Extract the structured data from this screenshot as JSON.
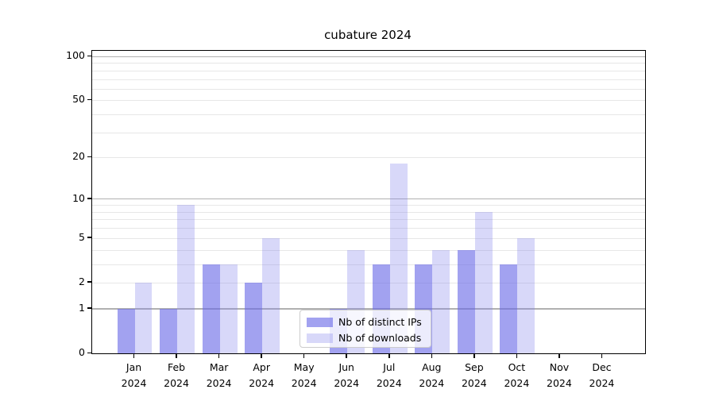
{
  "chart_data": {
    "type": "bar",
    "title": "cubature 2024",
    "year": "2024",
    "months": [
      "Jan",
      "Feb",
      "Mar",
      "Apr",
      "May",
      "Jun",
      "Jul",
      "Aug",
      "Sep",
      "Oct",
      "Nov",
      "Dec"
    ],
    "categories": [
      "Jan 2024",
      "Feb 2024",
      "Mar 2024",
      "Apr 2024",
      "May 2024",
      "Jun 2024",
      "Jul 2024",
      "Aug 2024",
      "Sep 2024",
      "Oct 2024",
      "Nov 2024",
      "Dec 2024"
    ],
    "series": [
      {
        "name": "Nb of distinct IPs",
        "values": [
          1,
          1,
          3,
          2,
          0,
          1,
          3,
          3,
          4,
          3,
          0,
          0
        ],
        "color": "rgba(105,105,230,0.62)"
      },
      {
        "name": "Nb of downloads",
        "values": [
          2,
          9,
          3,
          5,
          0,
          4,
          18,
          4,
          8,
          5,
          0,
          0
        ],
        "color": "rgba(125,125,235,0.30)"
      }
    ],
    "yscale": "log1p",
    "ylim": [
      0,
      109
    ],
    "y_ticks": [
      0,
      1,
      2,
      5,
      10,
      20,
      50,
      100
    ],
    "y_tick_labels": [
      "0",
      "1",
      "2",
      "5",
      "10",
      "20",
      "50",
      "100"
    ],
    "major_gridlines": [
      1,
      10,
      100
    ],
    "minor_gridlines": [
      2,
      3,
      4,
      5,
      6,
      7,
      8,
      9,
      20,
      30,
      40,
      50,
      60,
      70,
      80,
      90
    ],
    "grid": true,
    "legend_position": "lower center"
  },
  "colors": {
    "background": "#ffffff",
    "axis": "#000000",
    "grid_major": "#b0b0b0",
    "grid_minor": "#e7e7e7",
    "text": "#000000",
    "legend_border": "#cccccc",
    "legend_bg": "rgba(255,255,255,0.8)"
  }
}
